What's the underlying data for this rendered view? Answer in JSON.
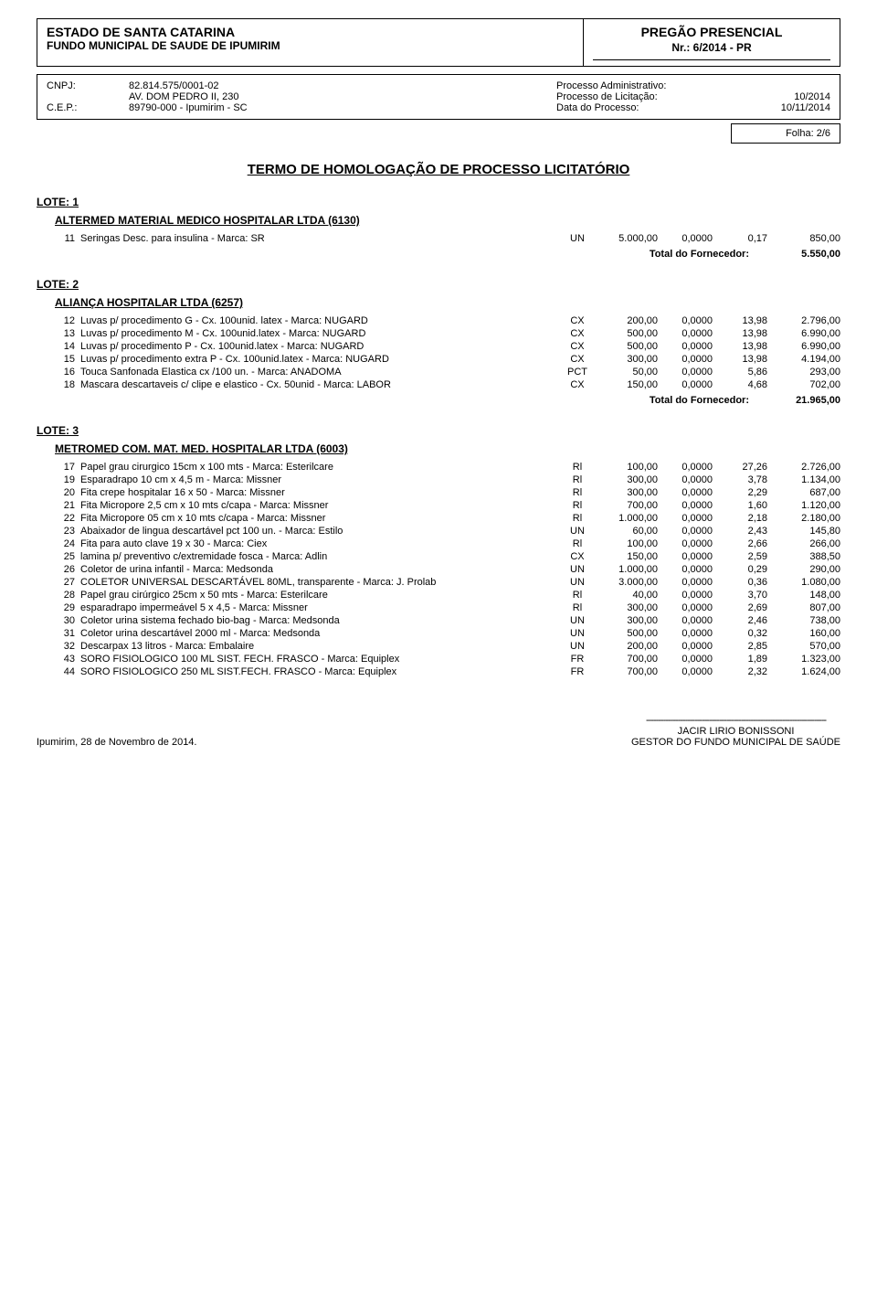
{
  "header": {
    "estado": "ESTADO DE SANTA CATARINA",
    "fundo": "FUNDO MUNICIPAL DE SAUDE DE IPUMIRIM",
    "pregao_title": "PREGÃO PRESENCIAL",
    "pregao_nr": "Nr.:  6/2014 - PR",
    "cnpj_label": "CNPJ:",
    "cnpj": "82.814.575/0001-02",
    "endereco_label": "",
    "endereco": "AV. DOM PEDRO II, 230",
    "cep_label": "C.E.P.:",
    "cep": "89790-000     -  Ipumirim - SC",
    "proc_admin_label": "Processo Administrativo:",
    "proc_admin": "",
    "proc_lic_label": "Processo de Licitação:",
    "proc_lic": "10/2014",
    "data_proc_label": "Data do Processo:",
    "data_proc": "10/11/2014",
    "folha": "Folha: 2/6"
  },
  "main_title": "TERMO  DE  HOMOLOGAÇÃO  DE  PROCESSO  LICITATÓRIO",
  "lotes": [
    {
      "label": "LOTE:  1",
      "vendor": "ALTERMED MATERIAL MEDICO HOSPITALAR LTDA     (6130)",
      "items": [
        {
          "n": "11",
          "desc": "Seringas Desc. para insulina - Marca: SR",
          "unit": "UN",
          "qty": "5.000,00",
          "pct": "0,0000",
          "up": "0,17",
          "tot": "850,00"
        }
      ],
      "total_label": "Total do Fornecedor:",
      "total": "5.550,00"
    },
    {
      "label": "LOTE:  2",
      "vendor": "ALIANÇA HOSPITALAR LTDA     (6257)",
      "items": [
        {
          "n": "12",
          "desc": "Luvas p/ procedimento G - Cx. 100unid. latex - Marca: NUGARD",
          "unit": "CX",
          "qty": "200,00",
          "pct": "0,0000",
          "up": "13,98",
          "tot": "2.796,00"
        },
        {
          "n": "13",
          "desc": "Luvas p/ procedimento M - Cx. 100unid.latex - Marca: NUGARD",
          "unit": "CX",
          "qty": "500,00",
          "pct": "0,0000",
          "up": "13,98",
          "tot": "6.990,00"
        },
        {
          "n": "14",
          "desc": "Luvas p/ procedimento P - Cx. 100unid.latex - Marca: NUGARD",
          "unit": "CX",
          "qty": "500,00",
          "pct": "0,0000",
          "up": "13,98",
          "tot": "6.990,00"
        },
        {
          "n": "15",
          "desc": "Luvas p/ procedimento extra P - Cx. 100unid.latex - Marca: NUGARD",
          "unit": "CX",
          "qty": "300,00",
          "pct": "0,0000",
          "up": "13,98",
          "tot": "4.194,00"
        },
        {
          "n": "16",
          "desc": "Touca Sanfonada Elastica cx /100 un. - Marca: ANADOMA",
          "unit": "PCT",
          "qty": "50,00",
          "pct": "0,0000",
          "up": "5,86",
          "tot": "293,00"
        },
        {
          "n": "18",
          "desc": "Mascara descartaveis c/ clipe e elastico - Cx. 50unid - Marca: LABOR",
          "unit": "CX",
          "qty": "150,00",
          "pct": "0,0000",
          "up": "4,68",
          "tot": "702,00"
        }
      ],
      "total_label": "Total do Fornecedor:",
      "total": "21.965,00"
    },
    {
      "label": "LOTE:  3",
      "vendor": "METROMED COM. MAT. MED. HOSPITALAR LTDA     (6003)",
      "items": [
        {
          "n": "17",
          "desc": "Papel grau cirurgico 15cm x 100 mts - Marca: Esterilcare",
          "unit": "Rl",
          "qty": "100,00",
          "pct": "0,0000",
          "up": "27,26",
          "tot": "2.726,00"
        },
        {
          "n": "19",
          "desc": "Esparadrapo 10 cm x 4,5 m - Marca: Missner",
          "unit": "Rl",
          "qty": "300,00",
          "pct": "0,0000",
          "up": "3,78",
          "tot": "1.134,00"
        },
        {
          "n": "20",
          "desc": "Fita crepe hospitalar 16 x 50 - Marca: Missner",
          "unit": "Rl",
          "qty": "300,00",
          "pct": "0,0000",
          "up": "2,29",
          "tot": "687,00"
        },
        {
          "n": "21",
          "desc": "Fita Micropore 2,5 cm x 10 mts c/capa - Marca: Missner",
          "unit": "Rl",
          "qty": "700,00",
          "pct": "0,0000",
          "up": "1,60",
          "tot": "1.120,00"
        },
        {
          "n": "22",
          "desc": "Fita Micropore 05 cm x 10 mts c/capa - Marca: Missner",
          "unit": "Rl",
          "qty": "1.000,00",
          "pct": "0,0000",
          "up": "2,18",
          "tot": "2.180,00"
        },
        {
          "n": "23",
          "desc": "Abaixador de lingua descartável pct 100 un. - Marca: Estilo",
          "unit": "UN",
          "qty": "60,00",
          "pct": "0,0000",
          "up": "2,43",
          "tot": "145,80"
        },
        {
          "n": "24",
          "desc": "Fita para auto clave 19 x 30 - Marca: Ciex",
          "unit": "Rl",
          "qty": "100,00",
          "pct": "0,0000",
          "up": "2,66",
          "tot": "266,00"
        },
        {
          "n": "25",
          "desc": "lamina p/ preventivo c/extremidade fosca - Marca: Adlin",
          "unit": "CX",
          "qty": "150,00",
          "pct": "0,0000",
          "up": "2,59",
          "tot": "388,50"
        },
        {
          "n": "26",
          "desc": "Coletor de urina infantil - Marca: Medsonda",
          "unit": "UN",
          "qty": "1.000,00",
          "pct": "0,0000",
          "up": "0,29",
          "tot": "290,00"
        },
        {
          "n": "27",
          "desc": "COLETOR UNIVERSAL DESCARTÁVEL 80ML, transparente - Marca: J. Prolab",
          "unit": "UN",
          "qty": "3.000,00",
          "pct": "0,0000",
          "up": "0,36",
          "tot": "1.080,00"
        },
        {
          "n": "28",
          "desc": "Papel grau cirúrgico 25cm x 50 mts - Marca: Esterilcare",
          "unit": "Rl",
          "qty": "40,00",
          "pct": "0,0000",
          "up": "3,70",
          "tot": "148,00"
        },
        {
          "n": "29",
          "desc": "esparadrapo impermeável 5 x 4,5 - Marca: Missner",
          "unit": "Rl",
          "qty": "300,00",
          "pct": "0,0000",
          "up": "2,69",
          "tot": "807,00"
        },
        {
          "n": "30",
          "desc": "Coletor urina sistema fechado bio-bag - Marca: Medsonda",
          "unit": "UN",
          "qty": "300,00",
          "pct": "0,0000",
          "up": "2,46",
          "tot": "738,00"
        },
        {
          "n": "31",
          "desc": "Coletor urina descartável 2000 ml - Marca: Medsonda",
          "unit": "UN",
          "qty": "500,00",
          "pct": "0,0000",
          "up": "0,32",
          "tot": "160,00"
        },
        {
          "n": "32",
          "desc": "Descarpax 13 litros - Marca: Embalaire",
          "unit": "UN",
          "qty": "200,00",
          "pct": "0,0000",
          "up": "2,85",
          "tot": "570,00"
        },
        {
          "n": "43",
          "desc": "SORO FISIOLOGICO 100 ML SIST. FECH. FRASCO - Marca: Equiplex",
          "unit": "FR",
          "qty": "700,00",
          "pct": "0,0000",
          "up": "1,89",
          "tot": "1.323,00"
        },
        {
          "n": "44",
          "desc": "SORO FISIOLOGICO 250 ML SIST.FECH. FRASCO - Marca: Equiplex",
          "unit": "FR",
          "qty": "700,00",
          "pct": "0,0000",
          "up": "2,32",
          "tot": "1.624,00"
        }
      ]
    }
  ],
  "footer": {
    "place_date": "Ipumirim,   28   de  Novembro   de   2014.",
    "line": "--------------------------------------------------------------------------",
    "name": "JACIR LIRIO BONISSONI",
    "role": "GESTOR DO FUNDO MUNICIPAL DE SAÚDE"
  }
}
